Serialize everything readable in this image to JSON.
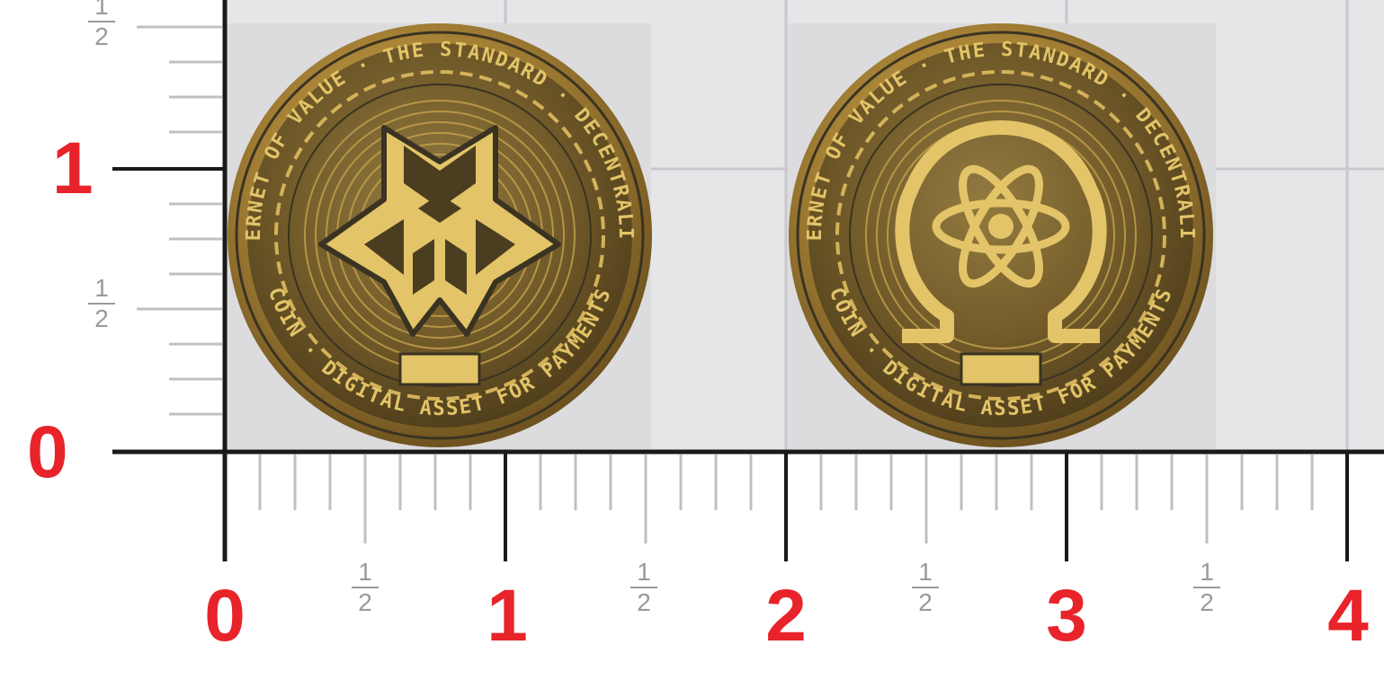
{
  "ruler": {
    "bottom_labels": [
      "0",
      "1",
      "2",
      "3",
      "4"
    ],
    "left_labels": [
      "0",
      "1"
    ],
    "half_numerator": "1",
    "half_denominator": "2"
  },
  "coins": [
    {
      "name": "star-face",
      "rim_text_top": "INTERNET OF VALUE · THE STANDARD · DECENTRALIZED",
      "rim_text_bottom": "COIN · DIGITAL ASSET FOR PAYMENTS"
    },
    {
      "name": "omega-atom-face",
      "rim_text_top": "INTERNET OF VALUE · THE STANDARD · DECENTRALIZED",
      "rim_text_bottom": "COIN · DIGITAL ASSET FOR PAYMENTS"
    }
  ],
  "colors": {
    "label_red": "#e8232a",
    "grid_bg": "#e6e6e8",
    "gold": "#c9a349",
    "gold_dark": "#3a3322"
  }
}
